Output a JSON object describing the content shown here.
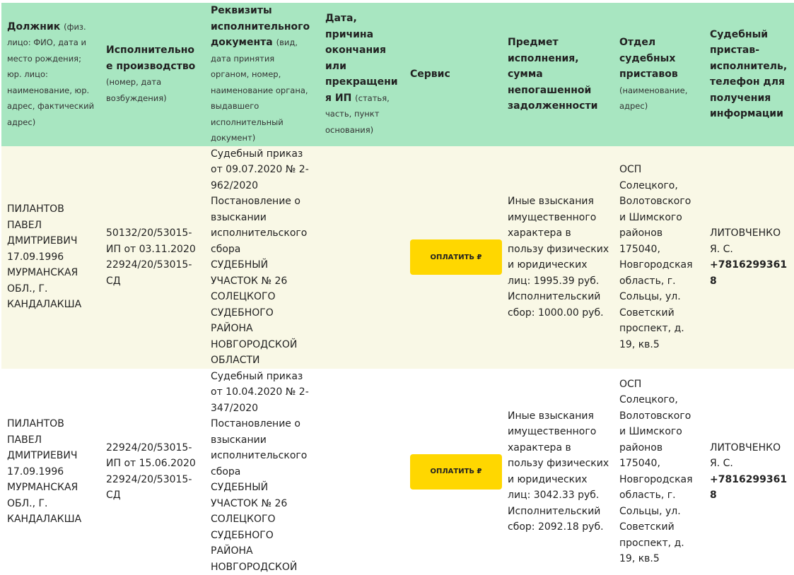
{
  "colors": {
    "header_bg": "#a8e6c1",
    "row_alt_bg": "#f9f8e6",
    "button_bg": "#ffd700"
  },
  "headers": [
    {
      "title": "Должник",
      "sub": "(физ. лицо: ФИО, дата и место рождения; юр. лицо: наименование, юр. адрес, фактический адрес)"
    },
    {
      "title": "Исполнительное производство",
      "sub": "(номер, дата возбуждения)"
    },
    {
      "title": "Реквизиты исполнительного документа",
      "sub": "(вид, дата принятия органом, номер, наименование органа, выдавшего исполнительный документ)"
    },
    {
      "title": "Дата, причина окончания или прекращения ИП",
      "sub": "(статья, часть, пункт основания)"
    },
    {
      "title": "Сервис",
      "sub": ""
    },
    {
      "title": "Предмет исполнения, сумма непогашенной задолженности",
      "sub": ""
    },
    {
      "title": "Отдел судебных приставов",
      "sub": "(наименование, адрес)"
    },
    {
      "title": "Судебный пристав-исполнитель, телефон для получения информации",
      "sub": ""
    }
  ],
  "rows": [
    {
      "debtor": "ПИЛАНТОВ ПАВЕЛ ДМИТРИЕВИЧ 17.09.1996 МУРМАНСКАЯ ОБЛ., Г. КАНДАЛАКША",
      "proceeding": "50132/20/53015-ИП от 03.11.2020 22924/20/53015-СД",
      "document": "Судебный приказ от 09.07.2020 № 2-962/2020\nПостановление о взыскании исполнительского сбора\nСУДЕБНЫЙ УЧАСТОК № 26 СОЛЕЦКОГО СУДЕБНОГО РАЙОНА НОВГОРОДСКОЙ ОБЛАСТИ",
      "end_reason": "",
      "pay_label": "ОПЛАТИТЬ ₽",
      "subject": "Иные взыскания имущественного характера в пользу физических и юридических лиц: 1995.39 руб. Исполнительский сбор: 1000.00 руб.",
      "department": "ОСП Солецкого, Волотовского и Шимского районов 175040, Новгородская область, г. Сольцы, ул. Советский проспект, д. 19, кв.5",
      "bailiff": "ЛИТОВЧЕНКО Я. С.",
      "phone": "+78162993618"
    },
    {
      "debtor": "ПИЛАНТОВ ПАВЕЛ ДМИТРИЕВИЧ 17.09.1996 МУРМАНСКАЯ ОБЛ., Г. КАНДАЛАКША",
      "proceeding": "22924/20/53015-ИП от 15.06.2020 22924/20/53015-СД",
      "document": "Судебный приказ от 10.04.2020 № 2-347/2020\nПостановление о взыскании исполнительского сбора\nСУДЕБНЫЙ УЧАСТОК № 26 СОЛЕЦКОГО СУДЕБНОГО РАЙОНА НОВГОРОДСКОЙ",
      "end_reason": "",
      "pay_label": "ОПЛАТИТЬ ₽",
      "subject": "Иные взыскания имущественного характера в пользу физических и юридических лиц: 3042.33 руб. Исполнительский сбор: 2092.18 руб.",
      "department": "ОСП Солецкого, Волотовского и Шимского районов 175040, Новгородская область, г. Сольцы, ул. Советский проспект, д. 19, кв.5",
      "bailiff": "ЛИТОВЧЕНКО Я. С.",
      "phone": "+78162993618"
    }
  ]
}
